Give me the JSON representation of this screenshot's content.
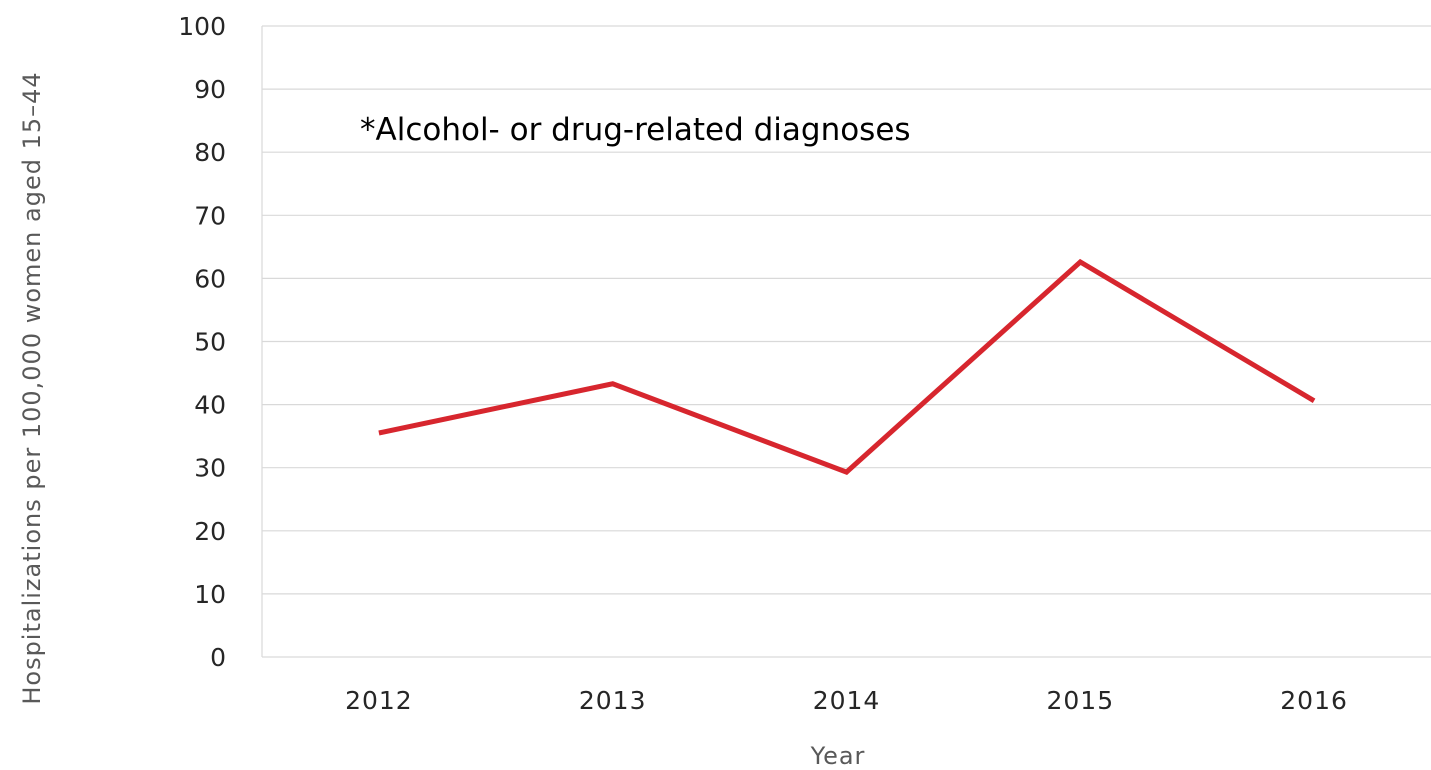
{
  "chart_data": {
    "type": "line",
    "title": "",
    "xlabel": "Year",
    "ylabel": "Hospitalizations per 100,000 women aged 15–44",
    "categories": [
      "2012",
      "2013",
      "2014",
      "2015",
      "2016"
    ],
    "series": [
      {
        "values": [
          35.5,
          43.3,
          29.3,
          62.6,
          40.6
        ],
        "color": "#d7262e"
      }
    ],
    "ylim": [
      0,
      100
    ],
    "yticks": [
      "0",
      "10",
      "20",
      "30",
      "40",
      "50",
      "60",
      "70",
      "80",
      "90",
      "100"
    ],
    "annotation": "*Alcohol- or drug-related diagnoses",
    "grid": true,
    "legend": "none"
  }
}
